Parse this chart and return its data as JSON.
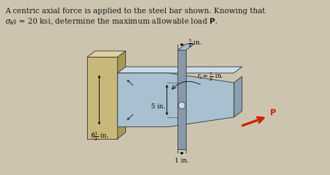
{
  "fig_bg": "#cdc4b0",
  "wall_color_front": "#c8b87a",
  "wall_color_side": "#a89858",
  "wall_color_top": "#e0d0a0",
  "plate_color_front": "#a8c0d0",
  "plate_color_top": "#c8dce8",
  "plate_color_side": "#88a0b0",
  "bar_color": "#8898a8",
  "dark_edge": "#404040",
  "title_line1": "A centric axial force is applied to the steel bar shown. Knowing that",
  "title_line2": " = 20 ksi, determine the maximum allowable load ",
  "text_color": "#1a1a1a",
  "red_arrow": "#cc2200"
}
